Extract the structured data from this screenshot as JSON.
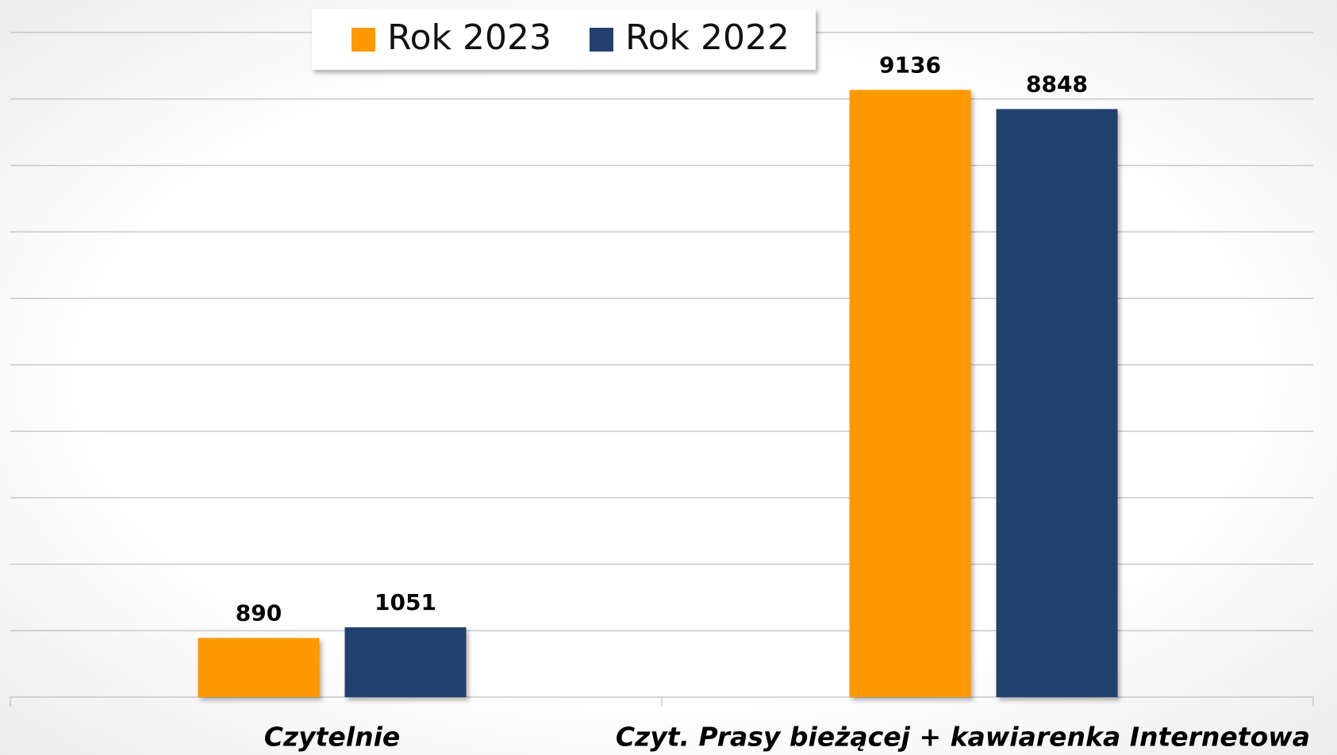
{
  "chart_data": {
    "type": "bar",
    "categories": [
      "Czytelnie",
      "Czyt. Prasy bieżącej + kawiarenka Internetowa"
    ],
    "series": [
      {
        "name": "Rok 2023",
        "color": "#ff9900",
        "values": [
          890,
          9136
        ]
      },
      {
        "name": "Rok 2022",
        "color": "#243f6e",
        "values": [
          1051,
          8848
        ]
      }
    ],
    "ylim": [
      0,
      10000
    ],
    "yticks": [
      0,
      1000,
      2000,
      3000,
      4000,
      5000,
      6000,
      7000,
      8000,
      9000,
      10000
    ],
    "grid": true,
    "legend": "top"
  }
}
